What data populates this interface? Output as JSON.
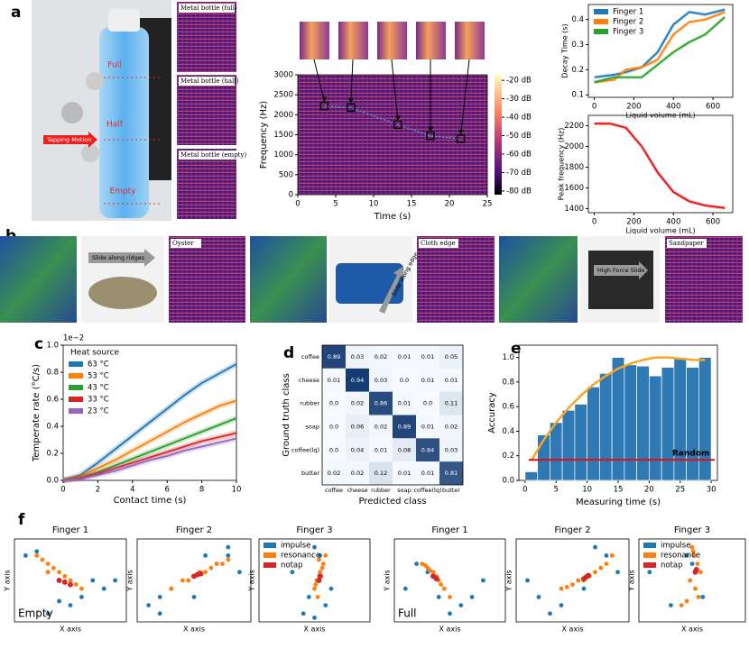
{
  "panel_labels": [
    "a",
    "b",
    "c",
    "d",
    "e",
    "f"
  ],
  "images": {
    "bottle": {
      "levels": [
        "Full",
        "Half",
        "Empty"
      ],
      "motion": "Tapping Motion"
    },
    "bottle_spectrograms": [
      "Metal bottle (full)",
      "Metal bottle (half)",
      "Metal bottle (empty)"
    ],
    "textures": [
      {
        "action": "Slide along ridges",
        "title": "Oyster"
      },
      {
        "action": "Slide along edge",
        "title": "Cloth edge"
      },
      {
        "action": "High Force Slide",
        "title": "Sandpaper"
      }
    ]
  },
  "chart_data": [
    {
      "type": "spectrogram",
      "xlabel": "Time (s)",
      "ylabel": "Frequency (Hz)",
      "xlim": [
        0,
        25
      ],
      "xticks": [
        0,
        5,
        10,
        15,
        20,
        25
      ],
      "ylim": [
        0,
        3000
      ],
      "yticks": [
        0,
        500,
        1000,
        1500,
        2000,
        2500,
        3000
      ],
      "peaks": {
        "x": [
          3.5,
          7,
          13.2,
          17.5,
          21.5
        ],
        "values": [
          2220,
          2180,
          1750,
          1470,
          1400
        ]
      },
      "clim": [
        -82,
        -17
      ],
      "cticks": [
        {
          "value": -20,
          "label": "-20 dB"
        },
        {
          "value": -30,
          "label": "-30 dB"
        },
        {
          "value": -40,
          "label": "-40 dB"
        },
        {
          "value": -50,
          "label": "-50 dB"
        },
        {
          "value": -60,
          "label": "-60 dB"
        },
        {
          "value": -70,
          "label": "-70 dB"
        },
        {
          "value": -80,
          "label": "-80 dB"
        }
      ]
    },
    {
      "type": "line",
      "xlabel": "Liquid volume (mL)",
      "ylabel": "Decay Time (s)",
      "xlim": [
        -30,
        700
      ],
      "xticks": [
        0,
        200,
        400,
        600
      ],
      "ylim": [
        0.09,
        0.46
      ],
      "yticks": [
        0.1,
        0.2,
        0.3,
        0.4
      ],
      "legend": "upper left",
      "x": [
        0,
        100,
        160,
        240,
        320,
        400,
        480,
        560,
        660
      ],
      "series": [
        {
          "name": "Finger 1",
          "color": "#1f77b4",
          "values": [
            0.17,
            0.18,
            0.19,
            0.21,
            0.27,
            0.38,
            0.43,
            0.42,
            0.44
          ]
        },
        {
          "name": "Finger 2",
          "color": "#ff7f0e",
          "values": [
            0.15,
            0.16,
            0.2,
            0.21,
            0.24,
            0.34,
            0.39,
            0.4,
            0.43
          ]
        },
        {
          "name": "Finger 3",
          "color": "#2ca02c",
          "values": [
            0.15,
            0.17,
            0.17,
            0.17,
            0.22,
            0.27,
            0.31,
            0.34,
            0.41
          ]
        }
      ]
    },
    {
      "type": "line",
      "xlabel": "Liquid volume (mL)",
      "ylabel": "Peak frequency (Hz)",
      "xlim": [
        -30,
        700
      ],
      "xticks": [
        0,
        200,
        400,
        600
      ],
      "ylim": [
        1360,
        2300
      ],
      "yticks": [
        1400,
        1600,
        1800,
        2000,
        2200
      ],
      "x": [
        0,
        80,
        160,
        240,
        320,
        400,
        480,
        560,
        660
      ],
      "series": [
        {
          "color": "#e01010",
          "values": [
            2220,
            2220,
            2180,
            2000,
            1750,
            1560,
            1470,
            1430,
            1405
          ]
        }
      ]
    },
    {
      "type": "line",
      "xlabel": "Contact time (s)",
      "ylabel": "Temperate rate (°C/s)",
      "annotation": "1e−2",
      "legend_title": "Heat source",
      "legend": "upper left",
      "band": true,
      "xlim": [
        0,
        10
      ],
      "xticks": [
        0,
        2,
        4,
        6,
        8,
        10
      ],
      "ylim": [
        0,
        1
      ],
      "yticks": [
        {
          "value": 0,
          "label": "0.0"
        },
        {
          "value": 0.2,
          "label": "0.2"
        },
        {
          "value": 0.4,
          "label": "0.4"
        },
        {
          "value": 0.6,
          "label": "0.6"
        },
        {
          "value": 0.8,
          "label": "0.8"
        },
        {
          "value": 1,
          "label": "1.0"
        }
      ],
      "x": [
        0,
        1,
        2,
        3,
        4,
        5,
        6,
        7,
        8,
        9,
        10
      ],
      "series": [
        {
          "name": "63 °C",
          "color": "#1f77b4",
          "values": [
            0,
            0.04,
            0.13,
            0.23,
            0.33,
            0.43,
            0.53,
            0.63,
            0.72,
            0.79,
            0.86
          ]
        },
        {
          "name": "53 °C",
          "color": "#ff7f0e",
          "values": [
            0,
            0.03,
            0.09,
            0.15,
            0.22,
            0.29,
            0.36,
            0.43,
            0.49,
            0.55,
            0.59
          ]
        },
        {
          "name": "43 °C",
          "color": "#2ca02c",
          "values": [
            0,
            0.02,
            0.06,
            0.11,
            0.16,
            0.21,
            0.26,
            0.31,
            0.36,
            0.41,
            0.46
          ]
        },
        {
          "name": "33 °C",
          "color": "#d62728",
          "values": [
            0,
            0.02,
            0.05,
            0.09,
            0.13,
            0.17,
            0.21,
            0.25,
            0.29,
            0.32,
            0.35
          ]
        },
        {
          "name": "23 °C",
          "color": "#9467bd",
          "values": [
            0,
            0.01,
            0.04,
            0.07,
            0.11,
            0.15,
            0.18,
            0.22,
            0.25,
            0.28,
            0.31
          ]
        }
      ]
    },
    {
      "type": "heatmap",
      "xlabel": "Predicted class",
      "ylabel": "Ground truth class",
      "categories": [
        "coffee",
        "cheese",
        "rubber",
        "soap",
        "coffee(lq)",
        "butter"
      ],
      "values": [
        [
          0.89,
          0.03,
          0.02,
          0.01,
          0.01,
          0.05
        ],
        [
          0.01,
          0.94,
          0.03,
          0,
          0.01,
          0.01
        ],
        [
          0,
          0.02,
          0.86,
          0.01,
          0,
          0.11
        ],
        [
          0,
          0.06,
          0.02,
          0.89,
          0.01,
          0.02
        ],
        [
          0,
          0.04,
          0.01,
          0.08,
          0.84,
          0.03
        ],
        [
          0.02,
          0.02,
          0.12,
          0.01,
          0.01,
          0.81
        ]
      ],
      "value_labels": [
        [
          "0.89",
          "0.03",
          "0.02",
          "0.01",
          "0.01",
          "0.05"
        ],
        [
          "0.01",
          "0.94",
          "0.03",
          "0.0",
          "0.01",
          "0.01"
        ],
        [
          "0.0",
          "0.02",
          "0.86",
          "0.01",
          "0.0",
          "0.11"
        ],
        [
          "0.0",
          "0.06",
          "0.02",
          "0.89",
          "0.01",
          "0.02"
        ],
        [
          "0.0",
          "0.04",
          "0.01",
          "0.08",
          "0.84",
          "0.03"
        ],
        [
          "0.02",
          "0.02",
          "0.12",
          "0.01",
          "0.01",
          "0.81"
        ]
      ]
    },
    {
      "type": "histogram",
      "xlabel": "Measuring time (s)",
      "ylabel": "Accuracy",
      "color": "#2f79b5",
      "xlim": [
        -1,
        31
      ],
      "xticks": [
        0,
        5,
        10,
        15,
        20,
        25,
        30
      ],
      "ylim": [
        0,
        1.1
      ],
      "yticks": [
        {
          "value": 0,
          "label": "0.0"
        },
        {
          "value": 0.2,
          "label": "0.2"
        },
        {
          "value": 0.4,
          "label": "0.4"
        },
        {
          "value": 0.6,
          "label": "0.6"
        },
        {
          "value": 0.8,
          "label": "0.8"
        },
        {
          "value": 1,
          "label": "1.0"
        }
      ],
      "bins": [
        0,
        2,
        4,
        6,
        8,
        10,
        12,
        14,
        16,
        18,
        20,
        22,
        24,
        26,
        28,
        30
      ],
      "values": [
        0.07,
        0.37,
        0.47,
        0.57,
        0.62,
        0.76,
        0.87,
        1.0,
        0.94,
        0.93,
        0.85,
        0.92,
        1.0,
        0.92,
        1.0
      ],
      "curve": {
        "color": "#f5a623",
        "x": [
          1,
          3,
          5,
          7,
          9,
          11,
          13,
          15,
          17,
          19,
          21,
          23,
          25,
          27,
          29
        ],
        "values": [
          0.16,
          0.33,
          0.47,
          0.59,
          0.69,
          0.78,
          0.85,
          0.91,
          0.95,
          0.98,
          1.0,
          1.0,
          0.99,
          0.98,
          0.98
        ]
      },
      "reference": {
        "name": "Random",
        "value": 0.167,
        "color": "#e01010"
      }
    },
    {
      "type": "scatter",
      "title": "Finger 1",
      "xlabel": "X axis",
      "ylabel": "Y axis",
      "annotation": "Empty",
      "xlim": [
        0,
        10
      ],
      "ylim": [
        0,
        10
      ],
      "series": [
        {
          "name": "impulse",
          "color": "#1f77b4",
          "x": [
            1,
            2,
            3,
            6,
            7,
            8,
            5,
            4,
            9,
            3
          ],
          "values": [
            8,
            8.5,
            6,
            3,
            5,
            4,
            2,
            2.5,
            5,
            1
          ]
        },
        {
          "name": "resonance",
          "color": "#ff7f0e",
          "x": [
            2,
            3,
            4,
            5,
            6,
            2.5,
            3.5,
            4.5,
            5.5,
            3
          ],
          "values": [
            8,
            7,
            6,
            5,
            4,
            7.5,
            6.5,
            5.5,
            4.5,
            6
          ]
        },
        {
          "name": "notap",
          "color": "#d62728",
          "x": [
            4,
            4.5,
            5
          ],
          "values": [
            5,
            4.8,
            4.5
          ]
        }
      ]
    },
    {
      "type": "scatter",
      "title": "Finger 2",
      "xlabel": "X axis",
      "ylabel": "Y axis",
      "xlim": [
        0,
        10
      ],
      "ylim": [
        0,
        10
      ],
      "series": [
        {
          "name": "impulse",
          "color": "#1f77b4",
          "x": [
            1,
            2,
            3,
            7,
            8,
            9,
            5,
            6,
            2,
            8
          ],
          "values": [
            2,
            1,
            4,
            7,
            8,
            6,
            3,
            8,
            3,
            9
          ]
        },
        {
          "name": "resonance",
          "color": "#ff7f0e",
          "x": [
            3,
            4,
            5,
            6,
            7,
            8,
            4.5,
            5.5,
            6.5,
            7.5
          ],
          "values": [
            4,
            5,
            5.5,
            6,
            7,
            7.5,
            5,
            6,
            6.5,
            7
          ]
        },
        {
          "name": "notap",
          "color": "#d62728",
          "x": [
            5,
            5.3,
            5.6
          ],
          "values": [
            5.5,
            5.7,
            5.8
          ]
        }
      ]
    },
    {
      "type": "scatter",
      "title": "Finger 3",
      "xlabel": "X axis",
      "ylabel": "Y axis",
      "legend": "upper left",
      "xlim": [
        0,
        10
      ],
      "ylim": [
        0,
        10
      ],
      "series": [
        {
          "name": "impulse",
          "color": "#1f77b4",
          "x": [
            4,
            5,
            6,
            5.5,
            4.5,
            6.5,
            3,
            5
          ],
          "values": [
            1,
            0.5,
            2,
            8,
            3,
            4,
            6,
            9
          ]
        },
        {
          "name": "resonance",
          "color": "#ff7f0e",
          "x": [
            5,
            5.2,
            5.5,
            5.8,
            6,
            5.3,
            5.6,
            5.1,
            5.7,
            5.4
          ],
          "values": [
            4,
            5,
            6,
            7,
            8,
            3,
            5.5,
            4.5,
            6.5,
            7.5
          ]
        },
        {
          "name": "notap",
          "color": "#d62728",
          "x": [
            5.4,
            5.5
          ],
          "values": [
            5,
            5.5
          ]
        }
      ]
    },
    {
      "type": "scatter",
      "title": "Finger 1",
      "xlabel": "X axis",
      "ylabel": "Y axis",
      "annotation": "Full",
      "xlim": [
        0,
        10
      ],
      "ylim": [
        0,
        10
      ],
      "series": [
        {
          "name": "impulse",
          "color": "#1f77b4",
          "x": [
            2,
            3,
            6,
            7,
            8,
            5,
            4,
            1
          ],
          "values": [
            7,
            6,
            2,
            3,
            5,
            1,
            3,
            4
          ]
        },
        {
          "name": "resonance",
          "color": "#ff7f0e",
          "x": [
            2.5,
            3,
            3.5,
            4,
            4.5,
            5,
            3.2,
            3.8,
            4.2,
            2.8
          ],
          "values": [
            7,
            6.5,
            6,
            5,
            4,
            3,
            6.2,
            5.5,
            4.5,
            6.8
          ]
        },
        {
          "name": "notap",
          "color": "#d62728",
          "x": [
            3.5,
            3.8
          ],
          "values": [
            5.5,
            5.2
          ]
        }
      ]
    },
    {
      "type": "scatter",
      "title": "Finger 2",
      "xlabel": "X axis",
      "ylabel": "Y axis",
      "xlim": [
        0,
        10
      ],
      "ylim": [
        0,
        10
      ],
      "series": [
        {
          "name": "impulse",
          "color": "#1f77b4",
          "x": [
            2,
            3,
            8,
            9,
            4,
            6,
            1,
            7
          ],
          "values": [
            3,
            1,
            8,
            6,
            2,
            4,
            5,
            9
          ]
        },
        {
          "name": "resonance",
          "color": "#ff7f0e",
          "x": [
            4,
            5,
            6,
            7,
            8,
            5.5,
            6.5,
            7.5,
            4.5,
            8.5
          ],
          "values": [
            4,
            4.5,
            5,
            6,
            7,
            5,
            5.5,
            6.5,
            4.2,
            8
          ]
        },
        {
          "name": "notap",
          "color": "#d62728",
          "x": [
            6,
            6.2,
            6.4
          ],
          "values": [
            5.2,
            5.4,
            5.6
          ]
        }
      ]
    },
    {
      "type": "scatter",
      "title": "Finger 3",
      "xlabel": "X axis",
      "ylabel": "Y axis",
      "legend": "upper left",
      "xlim": [
        0,
        10
      ],
      "ylim": [
        0,
        10
      ],
      "series": [
        {
          "name": "impulse",
          "color": "#1f77b4",
          "x": [
            5,
            4.5,
            3,
            6,
            1
          ],
          "values": [
            7,
            8,
            2,
            3,
            6
          ]
        },
        {
          "name": "resonance",
          "color": "#ff7f0e",
          "x": [
            5,
            5.2,
            5.5,
            5.8,
            4.8,
            5.3,
            5.6,
            4.5,
            4,
            5.1
          ],
          "values": [
            9,
            8,
            7,
            6,
            5,
            4,
            3,
            2.5,
            2,
            8.5
          ]
        },
        {
          "name": "notap",
          "color": "#d62728",
          "x": [
            5.3,
            5.4
          ],
          "values": [
            6,
            6.3
          ]
        }
      ]
    }
  ]
}
